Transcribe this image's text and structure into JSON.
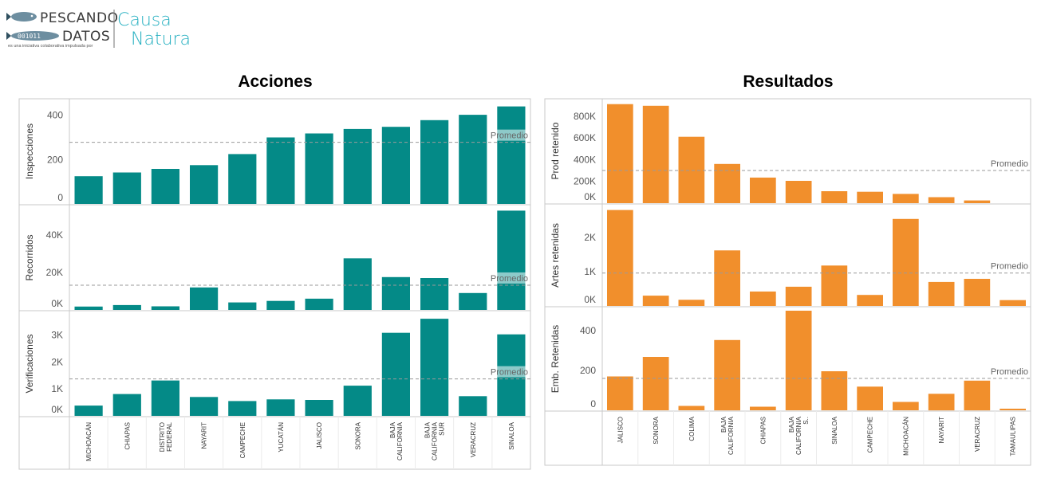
{
  "logo": {
    "line1": "PESCANDO",
    "line2": "DATOS",
    "fish_code": "001011",
    "tagline": "es una iniciativa colaborativa impulsada por",
    "brand1": "Causa",
    "brand2": "Natura",
    "brand_color": "#27b0c1"
  },
  "chart_data": [
    {
      "type": "bar",
      "title": "Acciones",
      "color": "#048a87",
      "avg_label": "Promedio",
      "categories": [
        "MICHOACÁN",
        "CHIAPAS",
        "DISTRITO FEDERAL",
        "NAYARIT",
        "CAMPECHE",
        "YUCATÁN",
        "JALISCO",
        "SONORA",
        "BAJA CALIFORNIA",
        "BAJA CALIFORNIA SUR",
        "VERACRUZ",
        "SINALOA"
      ],
      "series": [
        {
          "name": "Inspecciones",
          "values": [
            125,
            142,
            158,
            175,
            225,
            300,
            318,
            338,
            348,
            378,
            402,
            440
          ],
          "ylim": [
            0,
            460
          ],
          "ticks": [
            0,
            200,
            400
          ],
          "tick_labels": [
            "0",
            "200",
            "400"
          ],
          "average": 278
        },
        {
          "name": "Recorridos",
          "values": [
            1800,
            2600,
            1900,
            12000,
            4000,
            4800,
            6000,
            27500,
            17500,
            17000,
            9000,
            53000
          ],
          "ylim": [
            0,
            54000
          ],
          "ticks": [
            0,
            20000,
            40000
          ],
          "tick_labels": [
            "0K",
            "20K",
            "40K"
          ],
          "average": 13200
        },
        {
          "name": "Verificaciones",
          "values": [
            380,
            810,
            1310,
            700,
            550,
            610,
            590,
            1120,
            3080,
            3600,
            730,
            3020
          ],
          "ylim": [
            0,
            3750
          ],
          "ticks": [
            0,
            1000,
            2000,
            3000
          ],
          "tick_labels": [
            "0K",
            "1K",
            "2K",
            "3K"
          ],
          "average": 1370
        }
      ]
    },
    {
      "type": "bar",
      "title": "Resultados",
      "color": "#f18f2c",
      "avg_label": "Promedio",
      "categories": [
        "JALISCO",
        "SONORA",
        "COLIMA",
        "BAJA CALIFORNIA",
        "CHIAPAS",
        "BAJA CALIFORNIA S..",
        "SINALOA",
        "CAMPECHE",
        "MICHOACÁN",
        "NAYARIT",
        "VERACRUZ",
        "TAMAULIPAS"
      ],
      "series": [
        {
          "name": "Prod retenido",
          "values": [
            910000,
            895000,
            610000,
            360000,
            235000,
            205000,
            110000,
            105000,
            85000,
            55000,
            25000,
            0
          ],
          "ylim": [
            0,
            930000
          ],
          "ticks": [
            0,
            200000,
            400000,
            600000,
            800000
          ],
          "tick_labels": [
            "0K",
            "200K",
            "400K",
            "600K",
            "800K"
          ],
          "average": 300000
        },
        {
          "name": "Artes retenidas",
          "values": [
            2800,
            300,
            180,
            1620,
            420,
            560,
            1180,
            320,
            2540,
            700,
            790,
            170
          ],
          "ylim": [
            0,
            2860
          ],
          "ticks": [
            0,
            1000,
            2000
          ],
          "tick_labels": [
            "0K",
            "1K",
            "2K"
          ],
          "average": 960
        },
        {
          "name": "Emb. Retenidas",
          "values": [
            170,
            268,
            22,
            353,
            18,
            500,
            196,
            119,
            42,
            83,
            149,
            8
          ],
          "ylim": [
            0,
            500
          ],
          "ticks": [
            0,
            200,
            400
          ],
          "tick_labels": [
            "0",
            "200",
            "400"
          ],
          "average": 160
        }
      ]
    }
  ]
}
